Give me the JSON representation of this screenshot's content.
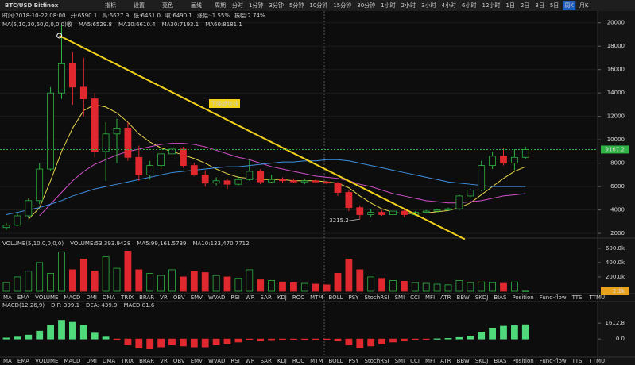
{
  "toolbar": {
    "symbol": "BTC/USD Bitfinex",
    "buttons": [
      "指标",
      "设置",
      "亮色",
      "画线"
    ],
    "period_label": "周期",
    "periods": [
      "分时",
      "1分钟",
      "3分钟",
      "5分钟",
      "10分钟",
      "15分钟",
      "30分钟",
      "1小时",
      "2小时",
      "3小时",
      "4小时",
      "6小时",
      "12小时",
      "1日",
      "2日",
      "3日",
      "5日",
      "周K",
      "月K"
    ],
    "active_period": 17
  },
  "info": [
    "时间:2018-10-22 08:00",
    "开:6590.1",
    "高:6627.9",
    "低:6451.0",
    "收:6490.1",
    "涨幅:-1.55%",
    "振幅:2.74%"
  ],
  "ma_legend": [
    {
      "text": "MA(5,10,30,60,0,0,0,0)收",
      "color": "#cfcfcf"
    },
    {
      "text": "MA5:6529.8",
      "color": "#ffffff"
    },
    {
      "text": "MA10:6610.4",
      "color": "#e8d44d"
    },
    {
      "text": "MA30:7193.1",
      "color": "#d04fc8"
    },
    {
      "text": "MA60:8181.1",
      "color": "#3f8fe0"
    }
  ],
  "volume_legend": [
    {
      "text": "VOLUME(5,10,0,0,0,0)",
      "color": "#cfcfcf"
    },
    {
      "text": "VOLUME:53,393.9428",
      "color": "#ffffff"
    },
    {
      "text": "MA5:99,161.5739",
      "color": "#ffffff"
    },
    {
      "text": "MA10:133,470.7712",
      "color": "#e8d44d"
    }
  ],
  "macd_legend": [
    {
      "text": "MACD(12,26,9)",
      "color": "#cfcfcf"
    },
    {
      "text": "DIF:-399.1",
      "color": "#ffffff"
    },
    {
      "text": "DEA:-439.9",
      "color": "#e8d44d"
    },
    {
      "text": "MACD:81.6",
      "color": "#d04fc8"
    }
  ],
  "indicators": [
    "MA",
    "EMA",
    "VOLUME",
    "MACD",
    "DMI",
    "DMA",
    "TRIX",
    "BRAR",
    "VR",
    "OBV",
    "EMV",
    "WVAD",
    "RSI",
    "WR",
    "SAR",
    "KDJ",
    "ROC",
    "MTM",
    "BOLL",
    "PSY",
    "StochRSI",
    "SMI",
    "CCI",
    "MFI",
    "ATR",
    "BBW",
    "SKDJ",
    "BIAS",
    "Position",
    "Fund-flow",
    "TTSI",
    "TTMU"
  ],
  "chart_data": [
    {
      "type": "candlestick",
      "up_color": "#2fb344",
      "down_color": "#e0282e",
      "ylim": [
        1600,
        21000
      ],
      "yticks": [
        2000,
        4000,
        6000,
        8000,
        10000,
        12000,
        14000,
        16000,
        18000,
        20000
      ],
      "grid": true,
      "open": [
        2500,
        2700,
        3500,
        4800,
        7500,
        14000,
        16500,
        14500,
        13500,
        9000,
        10500,
        11000,
        8500,
        7000,
        7800,
        8800,
        9200,
        7800,
        7000,
        6300,
        6500,
        6200,
        6600,
        7300,
        6400,
        6600,
        6500,
        6400,
        6500,
        6400,
        6300,
        5500,
        4200,
        3600,
        3800,
        3600,
        3900,
        3600,
        3800,
        3900,
        4000,
        4100,
        5200,
        5700,
        7800,
        8600,
        8000,
        8500
      ],
      "high": [
        2900,
        3700,
        5000,
        8000,
        14500,
        19800,
        17500,
        17000,
        14000,
        11500,
        11800,
        11500,
        9500,
        8200,
        9200,
        9900,
        9400,
        8000,
        7400,
        6800,
        6700,
        6900,
        8400,
        7500,
        7000,
        6800,
        6700,
        6700,
        6600,
        6500,
        6400,
        5700,
        4400,
        4100,
        4000,
        4000,
        4100,
        3900,
        4000,
        4100,
        4200,
        5300,
        5800,
        8200,
        9000,
        9300,
        9200,
        9400
      ],
      "low": [
        2300,
        2600,
        3300,
        4500,
        7300,
        13500,
        13000,
        12000,
        8500,
        6500,
        8000,
        8200,
        6500,
        6600,
        7500,
        8500,
        7600,
        6900,
        6000,
        6100,
        5800,
        6100,
        6500,
        6200,
        6300,
        6300,
        6300,
        6200,
        6300,
        6200,
        5200,
        3900,
        3215.2,
        3400,
        3500,
        3500,
        3400,
        3500,
        3700,
        3800,
        3900,
        4000,
        5100,
        5600,
        7500,
        7800,
        7400,
        8400
      ],
      "close": [
        2700,
        3500,
        4800,
        7500,
        14000,
        16500,
        14500,
        13500,
        9000,
        10500,
        11000,
        8500,
        7000,
        7800,
        8800,
        9200,
        7800,
        7000,
        6300,
        6500,
        6200,
        6600,
        7300,
        6400,
        6600,
        6500,
        6400,
        6500,
        6400,
        6300,
        5500,
        4200,
        3600,
        3800,
        3600,
        3900,
        3600,
        3800,
        3900,
        4000,
        4100,
        5200,
        5700,
        7800,
        8600,
        8000,
        8500,
        9167.2
      ],
      "lines": [
        {
          "color": "#e8d44d",
          "values": [
            null,
            null,
            3200,
            4200,
            6500,
            9000,
            11000,
            12500,
            13000,
            12800,
            12300,
            11500,
            10500,
            9800,
            9300,
            9000,
            8700,
            8400,
            8000,
            7500,
            7100,
            6800,
            6700,
            6600,
            6600,
            6600,
            6500,
            6500,
            6500,
            6400,
            6300,
            5900,
            5200,
            4600,
            4100,
            3800,
            3700,
            3700,
            3750,
            3850,
            3950,
            4200,
            4600,
            5300,
            6000,
            6700,
            7300,
            7700
          ]
        },
        {
          "color": "#d04fc8",
          "values": [
            null,
            null,
            null,
            3500,
            4500,
            5500,
            6500,
            7300,
            7900,
            8300,
            8700,
            9000,
            9200,
            9400,
            9600,
            9700,
            9700,
            9600,
            9400,
            9100,
            8800,
            8500,
            8300,
            8000,
            7700,
            7500,
            7300,
            7100,
            6900,
            6800,
            6700,
            6500,
            6200,
            6000,
            5700,
            5400,
            5200,
            5000,
            4800,
            4700,
            4600,
            4600,
            4700,
            4800,
            5000,
            5200,
            5300,
            5400
          ]
        },
        {
          "color": "#3f8fe0",
          "values": [
            3600,
            3800,
            4000,
            4200,
            4500,
            4800,
            5200,
            5500,
            5800,
            6000,
            6200,
            6400,
            6600,
            6800,
            7000,
            7200,
            7300,
            7400,
            7500,
            7600,
            7700,
            7700,
            7800,
            7900,
            8000,
            8100,
            8100,
            8200,
            8200,
            8300,
            8300,
            8200,
            8000,
            7800,
            7600,
            7400,
            7200,
            7000,
            6800,
            6600,
            6400,
            6300,
            6200,
            6100,
            6000,
            6000,
            6000,
            6000
          ]
        }
      ],
      "trendline": {
        "label": "下降趋势线",
        "color": "#f2d21b",
        "start": [
          4.8,
          18900
        ],
        "end": [
          41.5,
          1500
        ]
      }
    },
    {
      "type": "bar",
      "ylim": [
        0,
        720000
      ],
      "yticks": [
        {
          "value": 200000,
          "label": "200.0k"
        },
        {
          "value": 400000,
          "label": "400.0k"
        },
        {
          "value": 600000,
          "label": "600.0k"
        }
      ],
      "values": [
        120000,
        200000,
        280000,
        400000,
        250000,
        550000,
        300000,
        450000,
        280000,
        480000,
        320000,
        560000,
        300000,
        250000,
        220000,
        300000,
        200000,
        280000,
        260000,
        220000,
        200000,
        180000,
        300000,
        160000,
        150000,
        130000,
        120000,
        110000,
        100000,
        90000,
        250000,
        450000,
        300000,
        200000,
        180000,
        150000,
        140000,
        120000,
        110000,
        100000,
        90000,
        150000,
        120000,
        130000,
        120000,
        110000,
        130000,
        2100
      ],
      "value_labels": [
        null,
        null,
        null,
        null,
        null,
        null,
        null,
        null,
        null,
        null,
        null,
        null,
        null,
        null,
        null,
        null,
        null,
        null,
        null,
        null,
        null,
        null,
        null,
        null,
        null,
        null,
        null,
        null,
        null,
        null,
        null,
        null,
        null,
        null,
        null,
        null,
        null,
        null,
        null,
        null,
        null,
        null,
        null,
        null,
        null,
        null,
        null,
        "2.1k"
      ]
    },
    {
      "type": "bar",
      "ylim": [
        -2000,
        3400
      ],
      "yticks": [
        {
          "value": 0,
          "label": "0.0"
        },
        1612.8
      ],
      "up_color": "#4fd97a",
      "down_color": "#e0282e",
      "values": [
        100,
        200,
        400,
        800,
        1400,
        1900,
        1700,
        1400,
        600,
        200,
        -100,
        -600,
        -900,
        -1000,
        -800,
        -600,
        -700,
        -800,
        -800,
        -600,
        -500,
        -300,
        -100,
        -200,
        -150,
        -100,
        -80,
        -60,
        -50,
        -80,
        -200,
        -600,
        -900,
        -700,
        -500,
        -300,
        -200,
        -100,
        -50,
        20,
        60,
        150,
        300,
        700,
        1100,
        1300,
        1350,
        1450
      ]
    }
  ]
}
